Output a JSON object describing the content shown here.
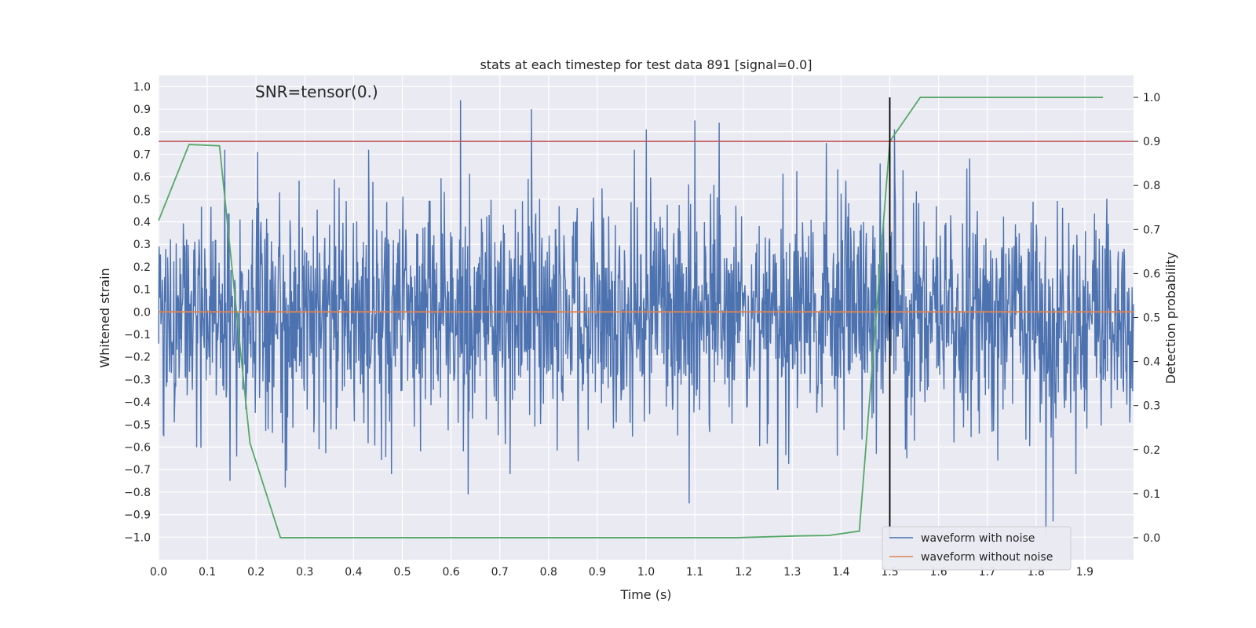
{
  "chart_data": {
    "type": "line",
    "title": "stats at each timestep for test data 891 [signal=0.0]",
    "xlabel": "Time (s)",
    "ylabel": "Whitened strain",
    "ylabel_right": "Detection probability",
    "annotation": "SNR=tensor(0.)",
    "xlim": [
      0.0,
      2.0
    ],
    "ylim": [
      -1.1,
      1.05
    ],
    "ylim_right": [
      -0.05,
      1.05
    ],
    "x_ticks": [
      0.0,
      0.1,
      0.2,
      0.3,
      0.4,
      0.5,
      0.6,
      0.7,
      0.8,
      0.9,
      1.0,
      1.1,
      1.2,
      1.3,
      1.4,
      1.5,
      1.6,
      1.7,
      1.8,
      1.9
    ],
    "x_tick_labels": [
      "0.0",
      "0.1",
      "0.2",
      "0.3",
      "0.4",
      "0.5",
      "0.6",
      "0.7",
      "0.8",
      "0.9",
      "1.0",
      "1.1",
      "1.2",
      "1.3",
      "1.4",
      "1.5",
      "1.6",
      "1.7",
      "1.8",
      "1.9"
    ],
    "y_ticks": [
      1.0,
      0.9,
      0.8,
      0.7,
      0.6,
      0.5,
      0.4,
      0.3,
      0.2,
      0.1,
      0.0,
      -0.1,
      -0.2,
      -0.3,
      -0.4,
      -0.5,
      -0.6,
      -0.7,
      -0.8,
      -0.9,
      -1.0
    ],
    "y_tick_labels": [
      "1.0",
      "0.9",
      "0.8",
      "0.7",
      "0.6",
      "0.5",
      "0.4",
      "0.3",
      "0.2",
      "0.1",
      "0.0",
      "−0.1",
      "−0.2",
      "−0.3",
      "−0.4",
      "−0.5",
      "−0.6",
      "−0.7",
      "−0.8",
      "−0.9",
      "−1.0"
    ],
    "y_right_ticks": [
      1.0,
      0.9,
      0.8,
      0.7,
      0.6,
      0.5,
      0.4,
      0.3,
      0.2,
      0.1,
      0.0
    ],
    "y_right_tick_labels": [
      "1.0",
      "0.9",
      "0.8",
      "0.7",
      "0.6",
      "0.5",
      "0.4",
      "0.3",
      "0.2",
      "0.1",
      "0.0"
    ],
    "series": [
      {
        "name": "waveform with noise",
        "color": "#4c72b0",
        "kind": "noise",
        "n_points": 2048,
        "x_range": [
          0.0,
          2.0
        ],
        "typical_range": [
          -0.5,
          0.5
        ],
        "peaks": [
          {
            "x": 0.619,
            "y": 0.94
          },
          {
            "x": 0.765,
            "y": 0.9
          },
          {
            "x": 0.203,
            "y": 0.71
          },
          {
            "x": 1.0,
            "y": 0.81
          },
          {
            "x": 1.1,
            "y": 0.85
          },
          {
            "x": 1.15,
            "y": 0.84
          },
          {
            "x": 1.37,
            "y": 0.75
          },
          {
            "x": 1.51,
            "y": 0.81
          },
          {
            "x": 0.635,
            "y": -0.81
          },
          {
            "x": 1.088,
            "y": -0.85
          },
          {
            "x": 1.82,
            "y": -1.0
          },
          {
            "x": 1.835,
            "y": -0.93
          },
          {
            "x": 0.147,
            "y": -0.75
          },
          {
            "x": 0.26,
            "y": -0.78
          },
          {
            "x": 1.27,
            "y": -0.79
          }
        ]
      },
      {
        "name": "waveform without noise",
        "color": "#dd8452",
        "x": [
          0.0,
          2.0
        ],
        "y": [
          0.0,
          0.0
        ]
      },
      {
        "name": "detection probability",
        "color": "#55a868",
        "axis": "right",
        "x": [
          0.0,
          0.0625,
          0.125,
          0.1875,
          0.25,
          0.3125,
          0.375,
          0.4375,
          0.5,
          0.5625,
          0.625,
          0.6875,
          0.75,
          0.8125,
          0.875,
          0.9375,
          1.0,
          1.0625,
          1.125,
          1.1875,
          1.25,
          1.3125,
          1.375,
          1.4375,
          1.5,
          1.5625,
          1.625,
          1.6875,
          1.75,
          1.8125,
          1.875,
          1.9375
        ],
        "y": [
          0.72,
          0.893,
          0.89,
          0.215,
          0.0,
          0.0,
          0.0,
          0.0,
          0.0,
          0.0,
          0.0,
          0.0,
          0.0,
          0.0,
          0.0,
          0.0,
          0.0,
          0.0,
          0.0,
          0.0,
          0.002,
          0.004,
          0.005,
          0.015,
          0.9,
          1.0,
          1.0,
          1.0,
          1.0,
          1.0,
          1.0,
          1.0
        ]
      }
    ],
    "hlines": [
      {
        "axis": "right",
        "y": 0.9,
        "color": "#c44e52"
      }
    ],
    "vlines": [
      {
        "x": 1.5,
        "color": "#000000",
        "y_right_range": [
          0.0,
          1.0
        ]
      }
    ],
    "legend": {
      "placement": "lower-right",
      "entries": [
        {
          "label": "waveform with noise",
          "color": "#4c72b0"
        },
        {
          "label": "waveform without noise",
          "color": "#dd8452"
        }
      ]
    },
    "colors": {
      "plot_background": "#eaeaf2",
      "grid": "#ffffff",
      "text": "#262626"
    }
  }
}
